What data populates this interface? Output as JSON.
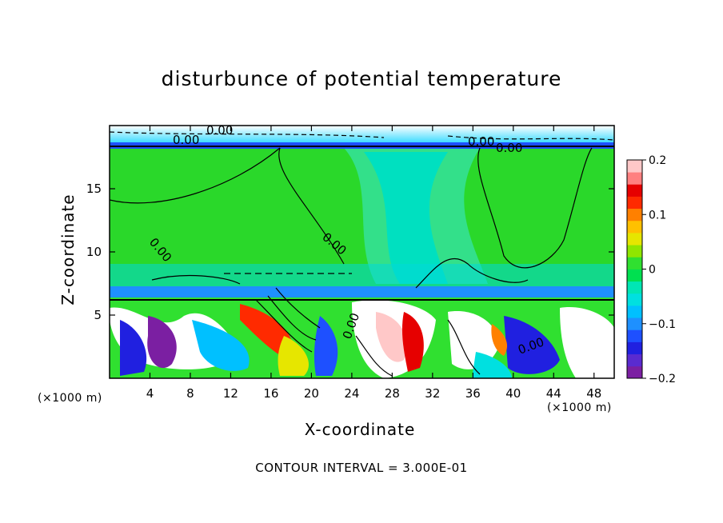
{
  "chart_data": {
    "type": "heatmap",
    "title": "disturbunce of potential temperature",
    "xlabel": "X-coordinate",
    "ylabel": "Z-coordinate",
    "x_unit": "(×1000 m)",
    "xlim": [
      0,
      50
    ],
    "ylim": [
      0,
      20
    ],
    "x_ticks": [
      "4",
      "8",
      "12",
      "16",
      "20",
      "24",
      "28",
      "32",
      "36",
      "40",
      "44",
      "48"
    ],
    "y_ticks": [
      "5",
      "10",
      "15"
    ],
    "contour_labels": [
      "0.00",
      "0.00",
      "0.00",
      "0.00",
      "0.00",
      "0.00",
      "0.00",
      "0.00"
    ],
    "colorbar": {
      "range": [
        -0.2,
        0.2
      ],
      "tick_labels": [
        "0.2",
        "0.1",
        "0",
        "−0.1",
        "−0.2"
      ],
      "colors": [
        "#7b1fa2",
        "#5a2bd0",
        "#2020e0",
        "#1e50ff",
        "#1e90ff",
        "#00c0ff",
        "#00e0e0",
        "#00e6b4",
        "#00e050",
        "#30e030",
        "#90e600",
        "#e6e600",
        "#ffc000",
        "#ff8000",
        "#ff2a00",
        "#e60000",
        "#ff8080",
        "#ffc8c8"
      ]
    },
    "footnote": "CONTOUR INTERVAL = 3.000E-01"
  }
}
